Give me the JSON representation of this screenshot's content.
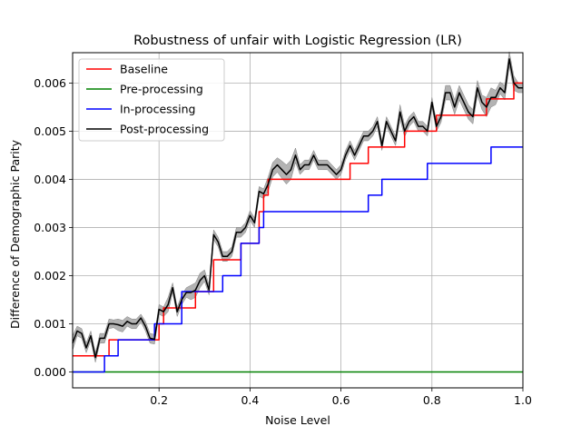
{
  "chart_data": {
    "type": "line",
    "title": "Robustness of unfair with Logistic Regression (LR)",
    "xlabel": "Noise Level",
    "ylabel": "Difference of Demographic Parity",
    "xlim": [
      0.01,
      1.0
    ],
    "ylim": [
      -0.00033,
      0.00663
    ],
    "xticks": [
      0.2,
      0.4,
      0.6,
      0.8,
      1.0
    ],
    "xtick_labels": [
      "0.2",
      "0.4",
      "0.6",
      "0.8",
      "1.0"
    ],
    "yticks": [
      0.0,
      0.001,
      0.002,
      0.003,
      0.004,
      0.005,
      0.006
    ],
    "ytick_labels": [
      "0.000",
      "0.001",
      "0.002",
      "0.003",
      "0.004",
      "0.005",
      "0.006"
    ],
    "grid": true,
    "legend_position": "top-left",
    "series": [
      {
        "name": "Baseline",
        "color": "#ff0000",
        "step": true,
        "x": [
          0.01,
          0.08,
          0.09,
          0.1,
          0.19,
          0.2,
          0.21,
          0.27,
          0.28,
          0.32,
          0.37,
          0.38,
          0.41,
          0.42,
          0.43,
          0.44,
          0.61,
          0.62,
          0.65,
          0.66,
          0.73,
          0.74,
          0.78,
          0.8,
          0.81,
          0.82,
          0.91,
          0.92,
          0.97,
          0.98,
          1.0
        ],
        "values": [
          0.000333,
          0.000333,
          0.000667,
          0.000667,
          0.000667,
          0.001,
          0.00133,
          0.00133,
          0.00167,
          0.00233,
          0.00233,
          0.00267,
          0.00267,
          0.00333,
          0.00367,
          0.004,
          0.004,
          0.00433,
          0.00433,
          0.00467,
          0.00467,
          0.005,
          0.005,
          0.005,
          0.00533,
          0.00533,
          0.00533,
          0.00567,
          0.00567,
          0.006,
          0.006
        ]
      },
      {
        "name": "Pre-processing",
        "color": "#008000",
        "step": false,
        "x": [
          0.01,
          1.0
        ],
        "values": [
          0.0,
          0.0
        ]
      },
      {
        "name": "In-processing",
        "color": "#0000ff",
        "step": true,
        "x": [
          0.01,
          0.07,
          0.08,
          0.1,
          0.11,
          0.18,
          0.19,
          0.24,
          0.25,
          0.33,
          0.34,
          0.37,
          0.38,
          0.41,
          0.42,
          0.43,
          0.44,
          0.65,
          0.66,
          0.68,
          0.69,
          0.78,
          0.79,
          0.92,
          0.93,
          1.0
        ],
        "values": [
          0.0,
          0.0,
          0.000333,
          0.000333,
          0.000667,
          0.000667,
          0.001,
          0.001,
          0.00167,
          0.00167,
          0.002,
          0.002,
          0.00267,
          0.00267,
          0.003,
          0.00333,
          0.00333,
          0.00333,
          0.00367,
          0.00367,
          0.004,
          0.004,
          0.00433,
          0.00433,
          0.00467,
          0.00467
        ]
      },
      {
        "name": "Post-processing",
        "color": "#000000",
        "step": false,
        "band_color": "#a0a0a0",
        "x": [
          0.01,
          0.02,
          0.03,
          0.04,
          0.05,
          0.06,
          0.07,
          0.08,
          0.09,
          0.1,
          0.11,
          0.12,
          0.13,
          0.14,
          0.15,
          0.16,
          0.17,
          0.18,
          0.19,
          0.2,
          0.21,
          0.22,
          0.23,
          0.24,
          0.25,
          0.26,
          0.27,
          0.28,
          0.29,
          0.3,
          0.31,
          0.32,
          0.33,
          0.34,
          0.35,
          0.36,
          0.37,
          0.38,
          0.39,
          0.4,
          0.41,
          0.42,
          0.43,
          0.44,
          0.45,
          0.46,
          0.47,
          0.48,
          0.49,
          0.5,
          0.51,
          0.52,
          0.53,
          0.54,
          0.55,
          0.56,
          0.57,
          0.58,
          0.59,
          0.6,
          0.61,
          0.62,
          0.63,
          0.64,
          0.65,
          0.66,
          0.67,
          0.68,
          0.69,
          0.7,
          0.71,
          0.72,
          0.73,
          0.74,
          0.75,
          0.76,
          0.77,
          0.78,
          0.79,
          0.8,
          0.81,
          0.82,
          0.83,
          0.84,
          0.85,
          0.86,
          0.87,
          0.88,
          0.89,
          0.9,
          0.91,
          0.92,
          0.93,
          0.94,
          0.95,
          0.96,
          0.97,
          0.98,
          0.99,
          1.0
        ],
        "values": [
          0.0006,
          0.00085,
          0.0008,
          0.0005,
          0.00075,
          0.0003,
          0.0007,
          0.0007,
          0.001,
          0.001,
          0.00098,
          0.00095,
          0.00105,
          0.001,
          0.001,
          0.00112,
          0.00095,
          0.0007,
          0.00068,
          0.0013,
          0.00125,
          0.0014,
          0.00175,
          0.00125,
          0.0015,
          0.00165,
          0.00165,
          0.0017,
          0.0019,
          0.002,
          0.0017,
          0.00285,
          0.0027,
          0.0024,
          0.0024,
          0.0025,
          0.0029,
          0.0029,
          0.003,
          0.00325,
          0.0031,
          0.00375,
          0.0037,
          0.0039,
          0.0042,
          0.0043,
          0.0042,
          0.0041,
          0.0042,
          0.0045,
          0.0042,
          0.0043,
          0.0043,
          0.0045,
          0.0043,
          0.0043,
          0.0043,
          0.0042,
          0.0041,
          0.0042,
          0.0045,
          0.0047,
          0.0045,
          0.0047,
          0.0049,
          0.0049,
          0.005,
          0.0052,
          0.0047,
          0.0052,
          0.005,
          0.0048,
          0.0054,
          0.005,
          0.0052,
          0.0053,
          0.0051,
          0.0051,
          0.005,
          0.0056,
          0.0051,
          0.0053,
          0.0058,
          0.0058,
          0.0055,
          0.0058,
          0.0056,
          0.0054,
          0.0053,
          0.0059,
          0.0056,
          0.0055,
          0.0057,
          0.0057,
          0.0059,
          0.0058,
          0.0065,
          0.006,
          0.0059,
          0.0059
        ],
        "band_half_width": [
          0.00015,
          0.0001,
          0.0001,
          0.0001,
          0.0001,
          0.0001,
          0.0001,
          0.0001,
          0.0001,
          8e-05,
          0.00012,
          0.00012,
          0.0001,
          0.0001,
          0.0001,
          8e-05,
          0.0001,
          0.0001,
          0.0001,
          0.0001,
          0.0001,
          0.00015,
          0.0001,
          0.0001,
          0.0001,
          0.0001,
          0.00015,
          0.00015,
          0.00015,
          0.00012,
          0.0001,
          0.0001,
          0.0001,
          0.0001,
          0.0001,
          0.0001,
          0.0001,
          0.0001,
          0.0001,
          0.0001,
          0.0001,
          0.0001,
          0.0001,
          0.00015,
          0.00015,
          0.00015,
          0.00018,
          0.0002,
          0.0002,
          0.00015,
          0.0001,
          0.0001,
          0.0001,
          0.0001,
          0.0001,
          0.0001,
          0.0001,
          0.0001,
          0.0001,
          0.0001,
          0.0001,
          0.0001,
          0.0001,
          0.0001,
          0.0001,
          0.0001,
          0.0001,
          0.0001,
          0.0001,
          0.0001,
          0.0001,
          0.0001,
          0.00015,
          0.00012,
          0.0001,
          0.0001,
          0.0001,
          0.0001,
          0.0001,
          0.0001,
          0.0001,
          0.00012,
          0.00015,
          0.00015,
          0.00015,
          0.00015,
          0.00015,
          0.00015,
          0.00015,
          0.00015,
          0.00015,
          0.0002,
          0.0002,
          0.00015,
          0.00012,
          0.00015,
          0.00015,
          0.00015,
          0.0001,
          0.0001
        ]
      }
    ]
  }
}
